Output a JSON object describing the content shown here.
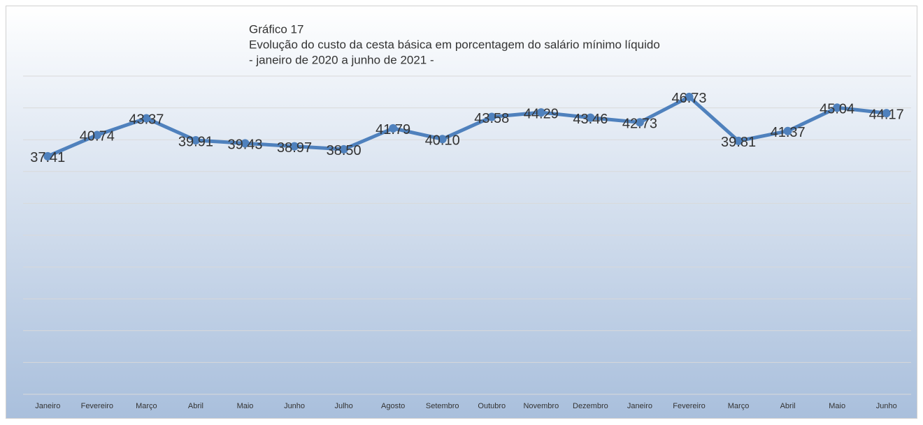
{
  "chart_data": {
    "type": "line",
    "title": "Gráfico 17",
    "subtitle": [
      "Evolução do custo da cesta básica em porcentagem do salário mínimo líquido",
      "- janeiro de 2020 a junho de 2021 -"
    ],
    "categories": [
      "Janeiro",
      "Fevereiro",
      "Março",
      "Abril",
      "Maio",
      "Junho",
      "Julho",
      "Agosto",
      "Setembro",
      "Outubro",
      "Novembro",
      "Dezembro",
      "Janeiro",
      "Fevereiro",
      "Março",
      "Abril",
      "Maio",
      "Junho"
    ],
    "series": [
      {
        "color": "#4f81bd",
        "values": [
          37.41,
          40.74,
          43.37,
          39.91,
          39.43,
          38.97,
          38.5,
          41.79,
          40.1,
          43.58,
          44.29,
          43.46,
          42.73,
          46.73,
          39.81,
          41.37,
          45.04,
          44.17
        ],
        "value_labels": [
          "37.41",
          "40.74",
          "43.37",
          "39.91",
          "39.43",
          "38.97",
          "38.50",
          "41.79",
          "40.10",
          "43.58",
          "44.29",
          "43.46",
          "42.73",
          "46.73",
          "39.81",
          "41.37",
          "45.04",
          "44.17"
        ]
      }
    ],
    "ylim": [
      0,
      50
    ],
    "yticks": [
      0,
      5,
      10,
      15,
      20,
      25,
      30,
      35,
      40,
      45,
      50
    ],
    "grid": true
  }
}
